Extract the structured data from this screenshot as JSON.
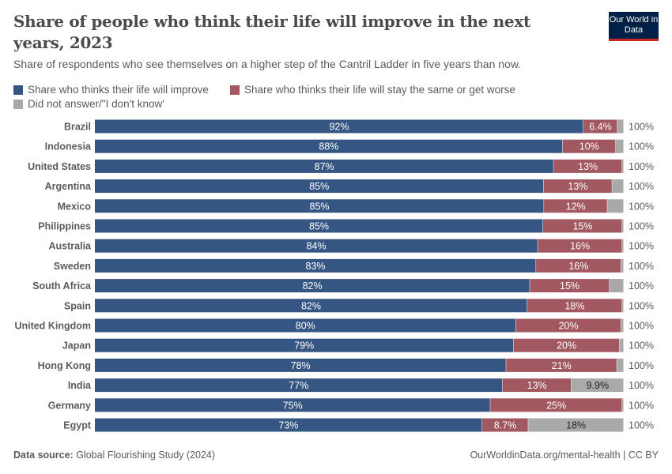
{
  "header": {
    "title": "Share of people who think their life will improve in the next years, 2023",
    "subtitle": "Share of respondents who see themselves on a higher step of the Cantril Ladder in five years than now.",
    "logo": "Our World in Data"
  },
  "footer": {
    "source_label": "Data source:",
    "source": "Global Flourishing Study (2024)",
    "right": "OurWorldinData.org/mental-health | CC BY"
  },
  "colors": {
    "improve": "#355683",
    "worse": "#a15861",
    "other": "#a9a9a9"
  },
  "chart_data": {
    "type": "bar",
    "orientation": "horizontal-stacked",
    "title": "Share of people who think their life will improve in the next years, 2023",
    "subtitle": "Share of respondents who see themselves on a higher step of the Cantril Ladder in five years than now.",
    "legend_position": "top-left",
    "categories": [
      "Brazil",
      "Indonesia",
      "United States",
      "Argentina",
      "Mexico",
      "Philippines",
      "Australia",
      "Sweden",
      "South Africa",
      "Spain",
      "United Kingdom",
      "Japan",
      "Hong Kong",
      "India",
      "Germany",
      "Egypt"
    ],
    "series": [
      {
        "name": "Share who thinks their life will improve",
        "values": [
          92,
          88,
          87,
          85,
          85,
          85,
          84,
          83,
          82,
          82,
          80,
          79,
          78,
          77,
          75,
          73
        ],
        "labels": [
          "92%",
          "88%",
          "87%",
          "85%",
          "85%",
          "85%",
          "84%",
          "83%",
          "82%",
          "82%",
          "80%",
          "79%",
          "78%",
          "77%",
          "75%",
          "73%"
        ]
      },
      {
        "name": "Share who thinks their life will stay the same or get worse",
        "values": [
          6.4,
          10,
          13,
          13,
          12,
          15,
          16,
          16,
          15,
          18,
          20,
          20,
          21,
          13,
          25,
          8.7
        ],
        "labels": [
          "6.4%",
          "10%",
          "13%",
          "13%",
          "12%",
          "15%",
          "16%",
          "16%",
          "15%",
          "18%",
          "20%",
          "20%",
          "21%",
          "13%",
          "25%",
          "8.7%"
        ]
      },
      {
        "name": "Did not answer/\"I don't know'",
        "values": [
          1.2,
          1.5,
          0.3,
          2.2,
          3.1,
          0.3,
          0.3,
          0.5,
          2.7,
          0.3,
          0.5,
          0.8,
          1.3,
          9.9,
          0.3,
          18
        ],
        "labels": [
          "",
          "",
          "",
          "",
          "",
          "",
          "",
          "",
          "",
          "",
          "",
          "",
          "",
          "9.9%",
          "",
          "18%"
        ]
      }
    ],
    "totals": [
      "100%",
      "100%",
      "100%",
      "100%",
      "100%",
      "100%",
      "100%",
      "100%",
      "100%",
      "100%",
      "100%",
      "100%",
      "100%",
      "100%",
      "100%",
      "100%"
    ]
  }
}
